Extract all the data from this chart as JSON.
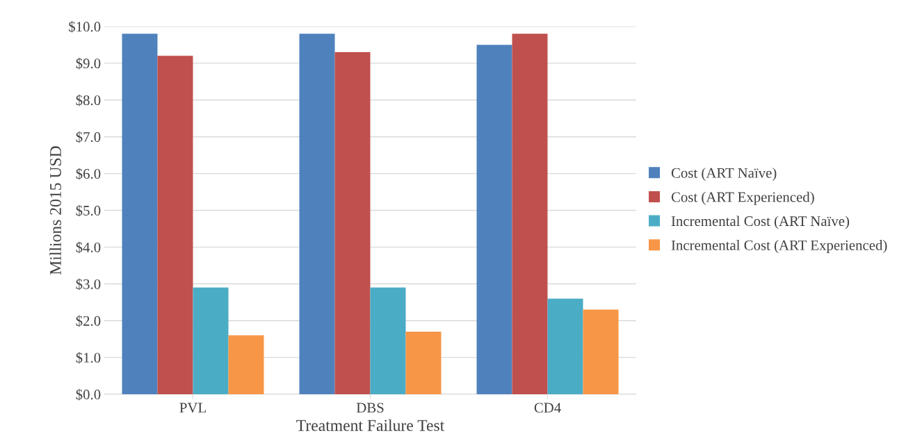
{
  "chart_data": {
    "type": "bar",
    "xlabel": "Treatment Failure Test",
    "ylabel": "Millions 2015 USD",
    "categories": [
      "PVL",
      "DBS",
      "CD4"
    ],
    "series": [
      {
        "name": "Cost (ART Naïve)",
        "color": "#4f81bd",
        "values": [
          9.8,
          9.8,
          9.5
        ]
      },
      {
        "name": "Cost (ART Experienced)",
        "color": "#c0504d",
        "values": [
          9.2,
          9.3,
          9.8
        ]
      },
      {
        "name": "Incremental Cost (ART Naïve)",
        "color": "#4bacc6",
        "values": [
          2.9,
          2.9,
          2.6
        ]
      },
      {
        "name": "Incremental Cost (ART Experienced)",
        "color": "#f79646",
        "values": [
          1.6,
          1.7,
          2.3
        ]
      }
    ],
    "ylim": [
      0,
      10
    ],
    "yticks": [
      {
        "value": 0,
        "label": "$0.0"
      },
      {
        "value": 1,
        "label": "$1.0"
      },
      {
        "value": 2,
        "label": "$2.0"
      },
      {
        "value": 3,
        "label": "$3.0"
      },
      {
        "value": 4,
        "label": "$4.0"
      },
      {
        "value": 5,
        "label": "$5.0"
      },
      {
        "value": 6,
        "label": "$6.0"
      },
      {
        "value": 7,
        "label": "$7.0"
      },
      {
        "value": 8,
        "label": "$8.0"
      },
      {
        "value": 9,
        "label": "$9.0"
      },
      {
        "value": 10,
        "label": "$10.0"
      }
    ],
    "grid": "y",
    "legend": "right"
  }
}
